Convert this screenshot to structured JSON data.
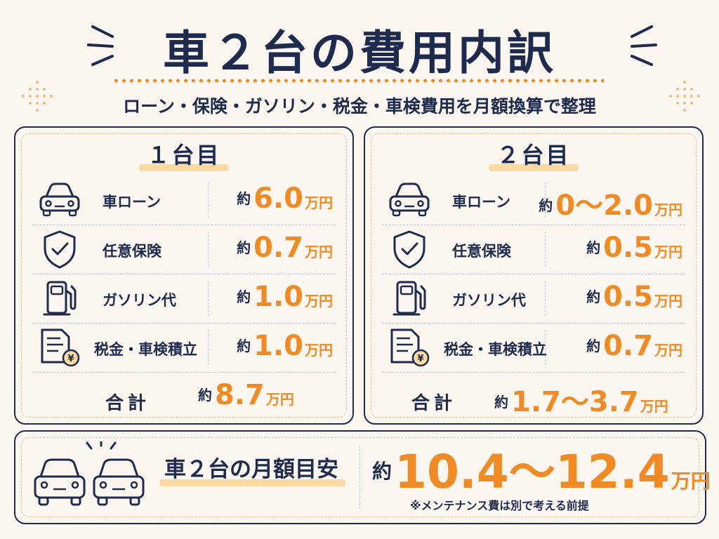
{
  "title": "車２台の費用内訳",
  "subtitle": "ローン・保険・ガソリン・税金・車検費用を月額換算で整理",
  "approx_prefix": "約",
  "unit": "万円",
  "colors": {
    "navy": "#1f2a4f",
    "accent": "#f08a24",
    "highlight": "#fbd9a3",
    "background": "#fbf7f0"
  },
  "car1": {
    "title": "１台目",
    "rows": [
      {
        "icon": "car-icon",
        "label": "車ローン",
        "value": "6.0"
      },
      {
        "icon": "shield-check-icon",
        "label": "任意保険",
        "value": "0.7"
      },
      {
        "icon": "gas-pump-icon",
        "label": "ガソリン代",
        "value": "1.0"
      },
      {
        "icon": "tax-document-icon",
        "label": "税金・車検積立",
        "value": "1.0"
      }
    ],
    "total_label": "合計",
    "total_value": "8.7"
  },
  "car2": {
    "title": "２台目",
    "rows": [
      {
        "icon": "car-icon",
        "label": "車ローン",
        "value": "0～2.0"
      },
      {
        "icon": "shield-check-icon",
        "label": "任意保険",
        "value": "0.5"
      },
      {
        "icon": "gas-pump-icon",
        "label": "ガソリン代",
        "value": "0.5"
      },
      {
        "icon": "tax-document-icon",
        "label": "税金・車検積立",
        "value": "0.7"
      }
    ],
    "total_label": "合計",
    "total_value": "1.7～3.7"
  },
  "summary": {
    "label": "車２台の月額目安",
    "value": "10.4～12.4",
    "note": "※メンテナンス費は別で考える前提"
  }
}
